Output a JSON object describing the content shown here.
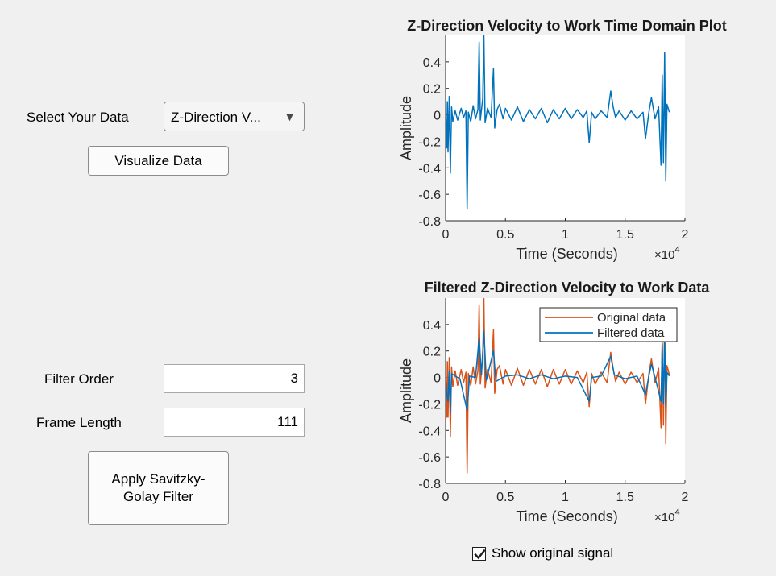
{
  "controls": {
    "select_label": "Select Your Data",
    "select_value": "Z-Direction V...",
    "visualize_button": "Visualize Data",
    "filter_order_label": "Filter Order",
    "filter_order_value": "3",
    "frame_length_label": "Frame Length",
    "frame_length_value": "111",
    "apply_button": "Apply Savitzky-\nGolay Filter",
    "show_original_label": "Show original signal",
    "show_original_checked": true
  },
  "colors": {
    "original": "#d95319",
    "filtered": "#0072bd"
  },
  "chart_data": [
    {
      "type": "line",
      "title": "Z-Direction Velocity to Work Time Domain Plot",
      "xlabel": "Time (Seconds)",
      "ylabel": "Amplitude",
      "x_exponent_label": "×10",
      "x_exponent_sup": "4",
      "xlim": [
        0,
        2
      ],
      "ylim": [
        -0.8,
        0.6
      ],
      "xticks": [
        "0",
        "0.5",
        "1",
        "1.5",
        "2"
      ],
      "yticks": [
        "0.4",
        "0.2",
        "0",
        "-0.2",
        "-0.4",
        "-0.6",
        "-0.8"
      ],
      "series": [
        {
          "values": [
            [
              0.0,
              0.02
            ],
            [
              0.01,
              -0.25
            ],
            [
              0.015,
              0.1
            ],
            [
              0.02,
              -0.28
            ],
            [
              0.03,
              0.14
            ],
            [
              0.04,
              -0.44
            ],
            [
              0.05,
              0.06
            ],
            [
              0.06,
              -0.05
            ],
            [
              0.08,
              0.03
            ],
            [
              0.1,
              -0.04
            ],
            [
              0.13,
              0.05
            ],
            [
              0.15,
              -0.02
            ],
            [
              0.17,
              0.03
            ],
            [
              0.18,
              -0.71
            ],
            [
              0.19,
              0.02
            ],
            [
              0.21,
              -0.05
            ],
            [
              0.23,
              0.07
            ],
            [
              0.25,
              -0.03
            ],
            [
              0.27,
              0.04
            ],
            [
              0.28,
              0.55
            ],
            [
              0.29,
              -0.04
            ],
            [
              0.31,
              0.12
            ],
            [
              0.32,
              0.6
            ],
            [
              0.33,
              -0.06
            ],
            [
              0.35,
              0.05
            ],
            [
              0.38,
              -0.02
            ],
            [
              0.4,
              0.35
            ],
            [
              0.41,
              -0.1
            ],
            [
              0.43,
              0.04
            ],
            [
              0.45,
              0.08
            ],
            [
              0.48,
              -0.03
            ],
            [
              0.5,
              0.05
            ],
            [
              0.55,
              -0.04
            ],
            [
              0.6,
              0.06
            ],
            [
              0.65,
              -0.05
            ],
            [
              0.7,
              0.04
            ],
            [
              0.75,
              -0.03
            ],
            [
              0.8,
              0.05
            ],
            [
              0.85,
              -0.06
            ],
            [
              0.9,
              0.04
            ],
            [
              0.95,
              -0.03
            ],
            [
              1.0,
              0.05
            ],
            [
              1.05,
              -0.03
            ],
            [
              1.1,
              0.04
            ],
            [
              1.15,
              -0.02
            ],
            [
              1.18,
              0.03
            ],
            [
              1.2,
              -0.21
            ],
            [
              1.22,
              0.02
            ],
            [
              1.25,
              -0.03
            ],
            [
              1.3,
              0.03
            ],
            [
              1.35,
              -0.02
            ],
            [
              1.38,
              0.18
            ],
            [
              1.4,
              0.06
            ],
            [
              1.42,
              -0.02
            ],
            [
              1.45,
              0.03
            ],
            [
              1.5,
              -0.04
            ],
            [
              1.55,
              0.03
            ],
            [
              1.6,
              -0.03
            ],
            [
              1.65,
              0.02
            ],
            [
              1.67,
              -0.18
            ],
            [
              1.7,
              0.03
            ],
            [
              1.72,
              0.13
            ],
            [
              1.75,
              -0.03
            ],
            [
              1.78,
              0.06
            ],
            [
              1.8,
              -0.38
            ],
            [
              1.81,
              0.3
            ],
            [
              1.82,
              -0.36
            ],
            [
              1.83,
              0.47
            ],
            [
              1.84,
              -0.5
            ],
            [
              1.85,
              0.08
            ],
            [
              1.87,
              0.02
            ]
          ]
        }
      ]
    },
    {
      "type": "line",
      "title": "Filtered Z-Direction Velocity to Work Data",
      "xlabel": "Time (Seconds)",
      "ylabel": "Amplitude",
      "x_exponent_label": "×10",
      "x_exponent_sup": "4",
      "xlim": [
        0,
        2
      ],
      "ylim": [
        -0.8,
        0.6
      ],
      "xticks": [
        "0",
        "0.5",
        "1",
        "1.5",
        "2"
      ],
      "yticks": [
        "0.4",
        "0.2",
        "0",
        "-0.2",
        "-0.4",
        "-0.6",
        "-0.8"
      ],
      "legend": [
        "Original data",
        "Filtered data"
      ],
      "legend_position": "top-right",
      "series": [
        {
          "name": "Original data",
          "values": [
            [
              0.0,
              0.02
            ],
            [
              0.01,
              -0.3
            ],
            [
              0.015,
              0.12
            ],
            [
              0.02,
              -0.3
            ],
            [
              0.03,
              0.15
            ],
            [
              0.04,
              -0.45
            ],
            [
              0.05,
              0.08
            ],
            [
              0.06,
              -0.07
            ],
            [
              0.08,
              0.05
            ],
            [
              0.1,
              -0.06
            ],
            [
              0.13,
              0.06
            ],
            [
              0.15,
              -0.04
            ],
            [
              0.17,
              0.04
            ],
            [
              0.18,
              -0.72
            ],
            [
              0.19,
              0.03
            ],
            [
              0.21,
              -0.06
            ],
            [
              0.23,
              0.08
            ],
            [
              0.25,
              -0.05
            ],
            [
              0.27,
              0.05
            ],
            [
              0.28,
              0.55
            ],
            [
              0.29,
              -0.05
            ],
            [
              0.31,
              0.14
            ],
            [
              0.32,
              0.6
            ],
            [
              0.33,
              -0.08
            ],
            [
              0.35,
              0.06
            ],
            [
              0.38,
              -0.04
            ],
            [
              0.4,
              0.36
            ],
            [
              0.41,
              -0.12
            ],
            [
              0.43,
              0.06
            ],
            [
              0.45,
              0.09
            ],
            [
              0.48,
              -0.05
            ],
            [
              0.5,
              0.06
            ],
            [
              0.55,
              -0.06
            ],
            [
              0.6,
              0.07
            ],
            [
              0.65,
              -0.06
            ],
            [
              0.7,
              0.06
            ],
            [
              0.75,
              -0.05
            ],
            [
              0.8,
              0.06
            ],
            [
              0.85,
              -0.07
            ],
            [
              0.9,
              0.06
            ],
            [
              0.95,
              -0.05
            ],
            [
              1.0,
              0.06
            ],
            [
              1.05,
              -0.05
            ],
            [
              1.1,
              0.05
            ],
            [
              1.15,
              -0.04
            ],
            [
              1.18,
              0.04
            ],
            [
              1.2,
              -0.22
            ],
            [
              1.22,
              0.03
            ],
            [
              1.25,
              -0.05
            ],
            [
              1.3,
              0.04
            ],
            [
              1.35,
              -0.04
            ],
            [
              1.38,
              0.19
            ],
            [
              1.4,
              0.07
            ],
            [
              1.42,
              -0.03
            ],
            [
              1.45,
              0.04
            ],
            [
              1.5,
              -0.05
            ],
            [
              1.55,
              0.04
            ],
            [
              1.6,
              -0.04
            ],
            [
              1.65,
              0.03
            ],
            [
              1.67,
              -0.2
            ],
            [
              1.7,
              0.04
            ],
            [
              1.72,
              0.14
            ],
            [
              1.75,
              -0.04
            ],
            [
              1.78,
              0.07
            ],
            [
              1.8,
              -0.38
            ],
            [
              1.81,
              0.3
            ],
            [
              1.82,
              -0.36
            ],
            [
              1.83,
              0.47
            ],
            [
              1.84,
              -0.5
            ],
            [
              1.85,
              0.09
            ],
            [
              1.87,
              0.02
            ]
          ]
        },
        {
          "name": "Filtered data",
          "values": [
            [
              0.0,
              0.01
            ],
            [
              0.01,
              -0.12
            ],
            [
              0.02,
              -0.18
            ],
            [
              0.03,
              0.05
            ],
            [
              0.04,
              -0.27
            ],
            [
              0.05,
              0.03
            ],
            [
              0.08,
              0.01
            ],
            [
              0.12,
              -0.01
            ],
            [
              0.18,
              -0.25
            ],
            [
              0.2,
              0.01
            ],
            [
              0.25,
              0.0
            ],
            [
              0.28,
              0.3
            ],
            [
              0.3,
              0.02
            ],
            [
              0.32,
              0.35
            ],
            [
              0.34,
              -0.02
            ],
            [
              0.4,
              0.2
            ],
            [
              0.42,
              -0.03
            ],
            [
              0.5,
              0.01
            ],
            [
              0.6,
              0.02
            ],
            [
              0.7,
              -0.01
            ],
            [
              0.8,
              0.02
            ],
            [
              0.9,
              -0.01
            ],
            [
              1.0,
              0.01
            ],
            [
              1.1,
              0.0
            ],
            [
              1.2,
              -0.18
            ],
            [
              1.22,
              0.0
            ],
            [
              1.3,
              0.01
            ],
            [
              1.38,
              0.16
            ],
            [
              1.41,
              0.02
            ],
            [
              1.5,
              -0.01
            ],
            [
              1.6,
              0.01
            ],
            [
              1.67,
              -0.13
            ],
            [
              1.7,
              0.02
            ],
            [
              1.72,
              0.1
            ],
            [
              1.75,
              0.0
            ],
            [
              1.8,
              -0.18
            ],
            [
              1.81,
              0.25
            ],
            [
              1.82,
              -0.2
            ],
            [
              1.83,
              0.3
            ],
            [
              1.84,
              -0.22
            ],
            [
              1.85,
              0.04
            ],
            [
              1.87,
              0.01
            ]
          ]
        }
      ]
    }
  ]
}
